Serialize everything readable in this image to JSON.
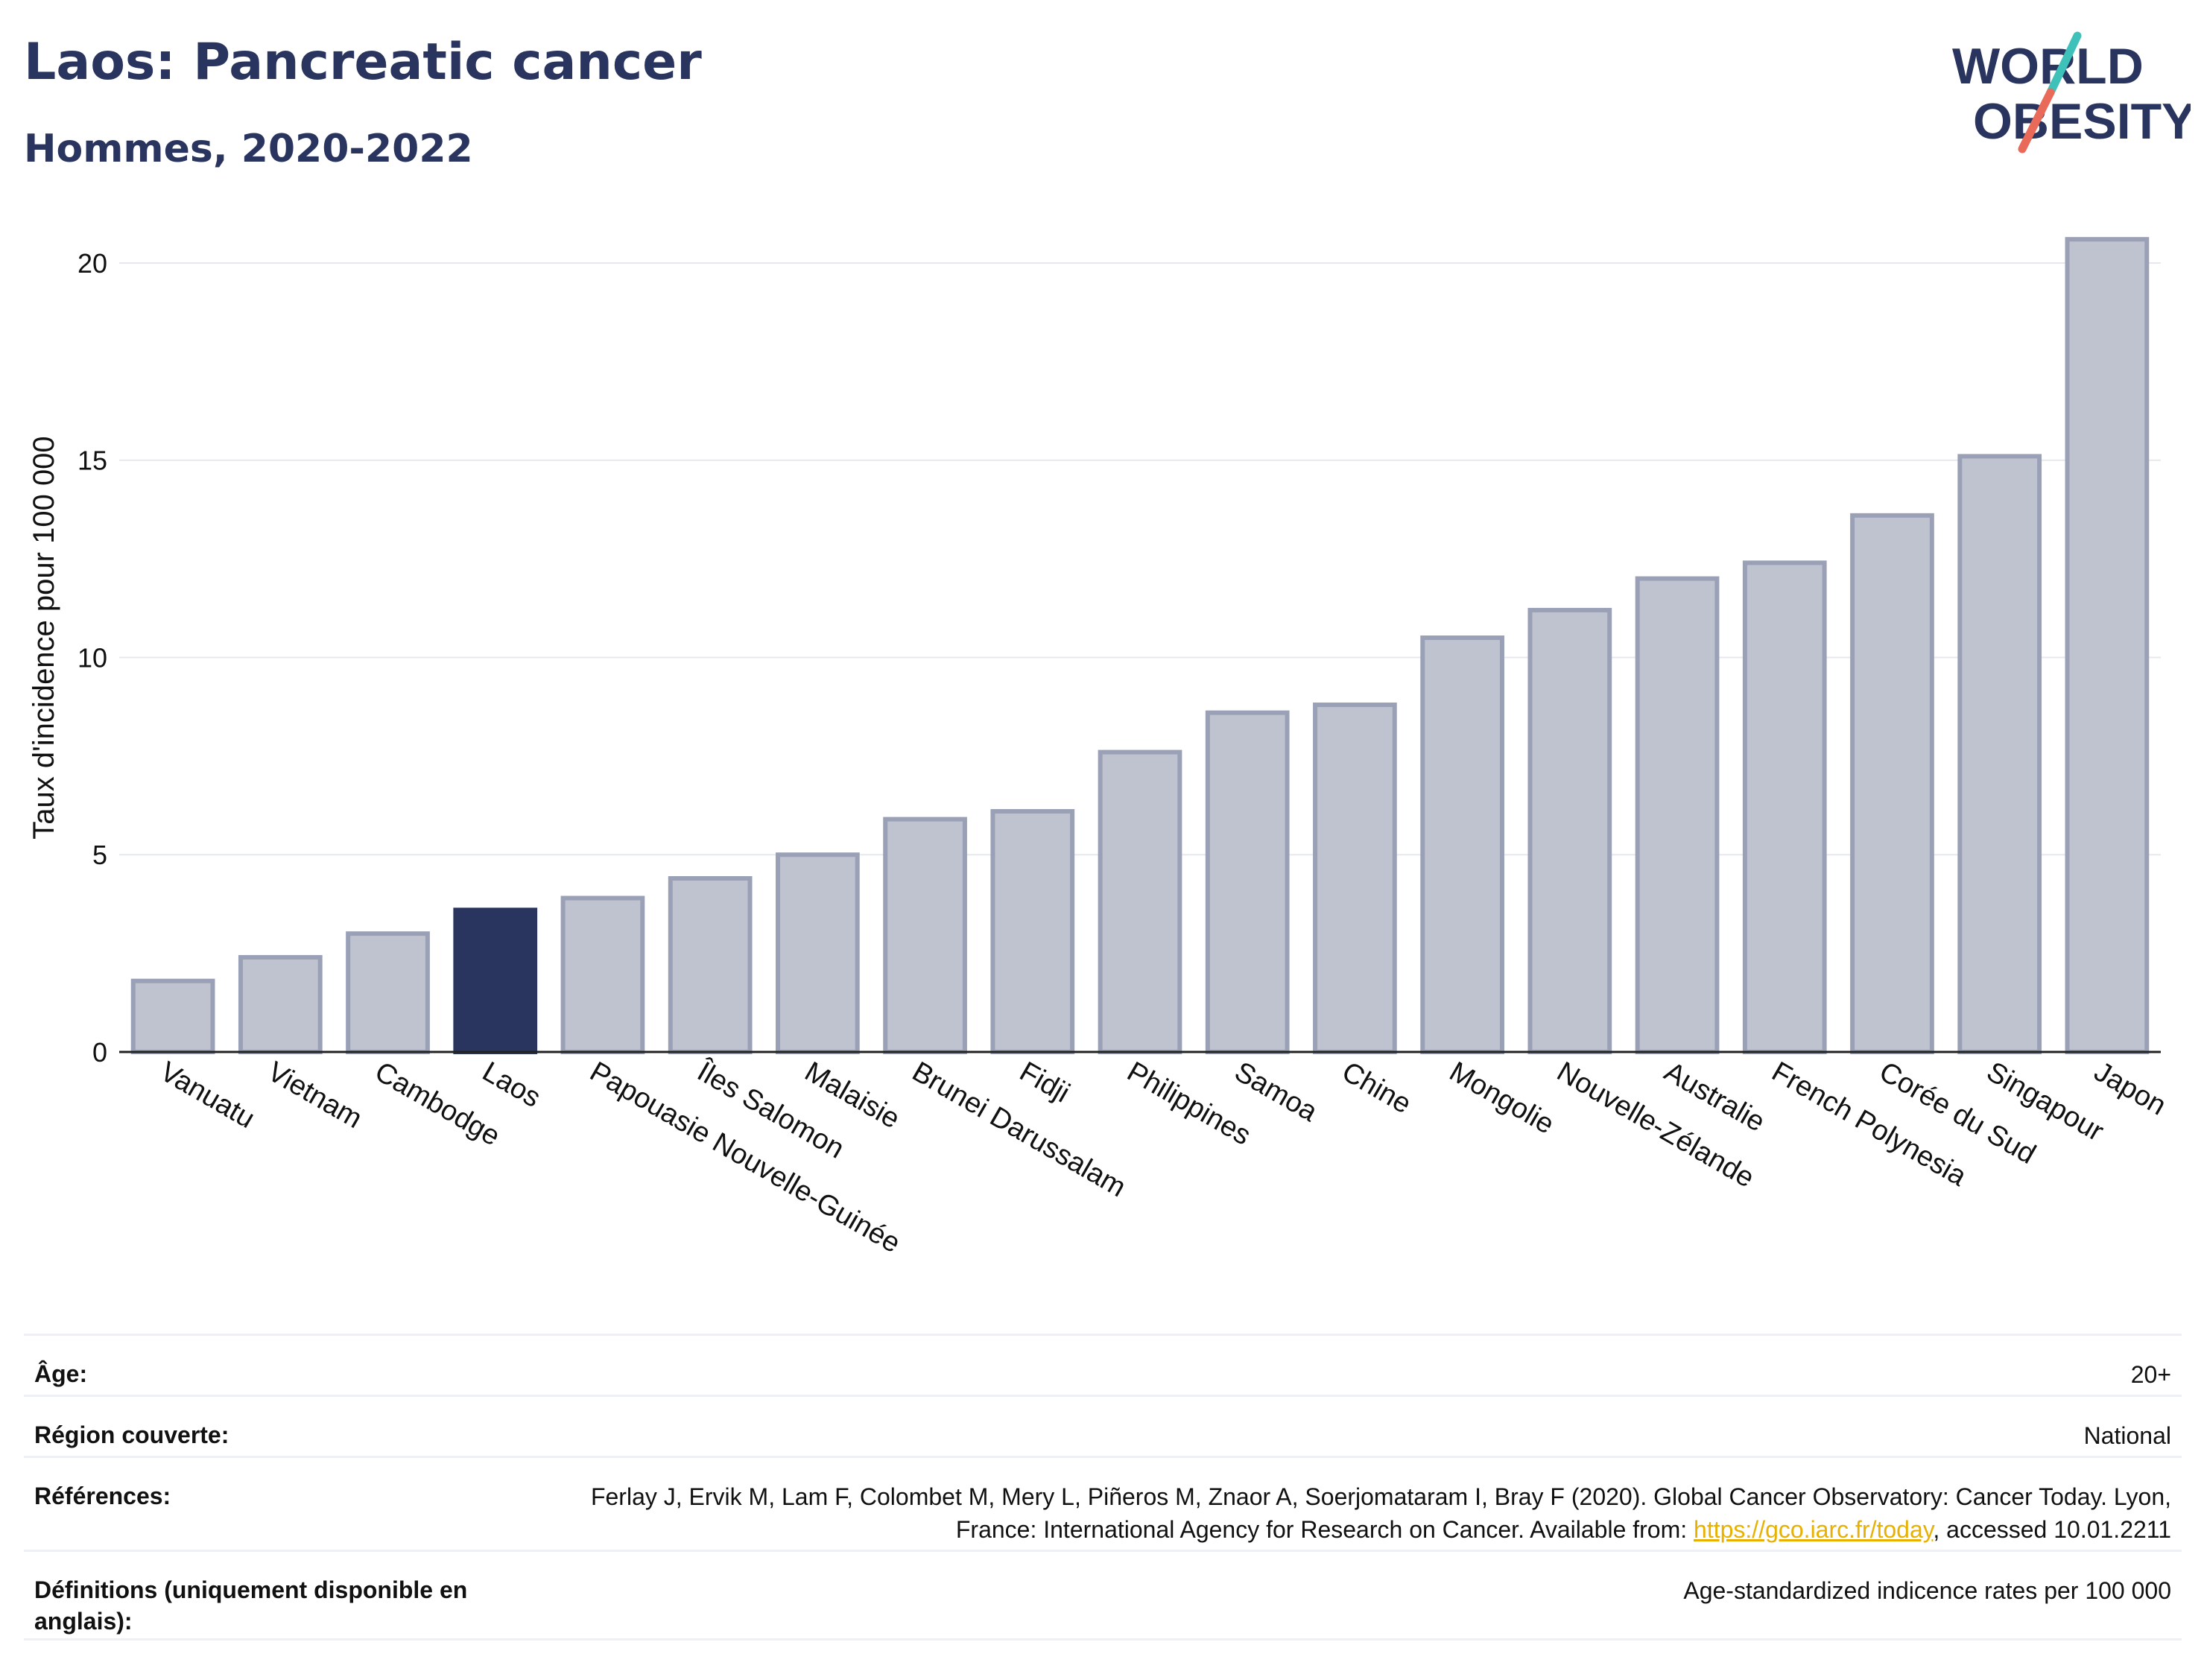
{
  "header": {
    "title": "Laos: Pancreatic cancer",
    "subtitle": "Hommes, 2020-2022"
  },
  "logo": {
    "line1": "WORLD",
    "line2": "OBESITY"
  },
  "colors": {
    "highlight": "#2a355f",
    "bar_fill": "#bfc3d0",
    "bar_stroke": "#9aa1b7",
    "accent_teal": "#3ec1b8",
    "accent_coral": "#ea6a5a"
  },
  "chart_data": {
    "type": "bar",
    "categories": [
      "Vanuatu",
      "Vietnam",
      "Cambodge",
      "Laos",
      "Papouasie Nouvelle-Guinée",
      "Îles Salomon",
      "Malaisie",
      "Brunei Darussalam",
      "Fidji",
      "Philippines",
      "Samoa",
      "Chine",
      "Mongolie",
      "Nouvelle-Zélande",
      "Australie",
      "French Polynesia",
      "Corée du Sud",
      "Singapour",
      "Japon"
    ],
    "values": [
      1.8,
      2.4,
      3.0,
      3.6,
      3.9,
      4.4,
      5.0,
      5.9,
      6.1,
      7.6,
      8.6,
      8.8,
      10.5,
      11.2,
      12.0,
      12.4,
      13.6,
      15.1,
      20.6
    ],
    "highlight": "Laos",
    "ylabel": "Taux d'incidence pour 100 000",
    "xlabel": "",
    "ylim": [
      0,
      21
    ],
    "yticks": [
      0,
      5,
      10,
      15,
      20
    ],
    "grid": true
  },
  "meta": {
    "age_label": "Âge:",
    "age_value": "20+",
    "region_label": "Région couverte:",
    "region_value": "National",
    "references_label": "Références:",
    "references_text": "Ferlay J, Ervik M, Lam F, Colombet M, Mery L, Piñeros M, Znaor A, Soerjomataram I, Bray F (2020). Global Cancer Observatory: Cancer Today. Lyon, France: International Agency for Research on Cancer. Available from: ",
    "references_link": "https://gco.iarc.fr/today",
    "references_suffix": ", accessed 10.01.2211",
    "definitions_label": "Définitions (uniquement disponible en anglais):",
    "definitions_value": "Age-standardized indicence rates per 100 000"
  }
}
